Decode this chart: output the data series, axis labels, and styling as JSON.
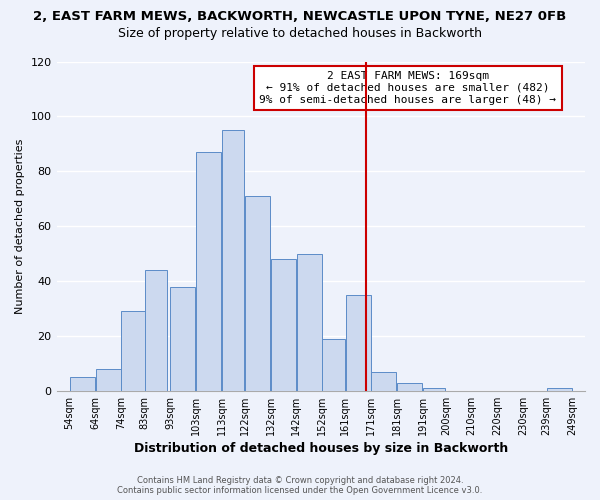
{
  "title1": "2, EAST FARM MEWS, BACKWORTH, NEWCASTLE UPON TYNE, NE27 0FB",
  "title2": "Size of property relative to detached houses in Backworth",
  "xlabel": "Distribution of detached houses by size in Backworth",
  "ylabel": "Number of detached properties",
  "bar_left_edges": [
    54,
    64,
    74,
    83,
    93,
    103,
    113,
    122,
    132,
    142,
    152,
    161,
    171,
    181,
    191,
    200,
    210,
    220,
    230,
    239
  ],
  "bar_widths": [
    10,
    10,
    10,
    9,
    10,
    10,
    9,
    10,
    10,
    10,
    9,
    10,
    10,
    10,
    9,
    10,
    10,
    10,
    9,
    10
  ],
  "bar_heights": [
    5,
    8,
    29,
    44,
    38,
    87,
    95,
    71,
    48,
    50,
    19,
    35,
    7,
    3,
    1,
    0,
    0,
    0,
    0,
    1
  ],
  "tick_labels": [
    "54sqm",
    "64sqm",
    "74sqm",
    "83sqm",
    "93sqm",
    "103sqm",
    "113sqm",
    "122sqm",
    "132sqm",
    "142sqm",
    "152sqm",
    "161sqm",
    "171sqm",
    "181sqm",
    "191sqm",
    "200sqm",
    "210sqm",
    "220sqm",
    "230sqm",
    "239sqm",
    "249sqm"
  ],
  "tick_positions": [
    54,
    64,
    74,
    83,
    93,
    103,
    113,
    122,
    132,
    142,
    152,
    161,
    171,
    181,
    191,
    200,
    210,
    220,
    230,
    239,
    249
  ],
  "bar_color": "#ccd9ef",
  "bar_edge_color": "#5b8cc8",
  "vline_x": 169,
  "vline_color": "#cc0000",
  "annotation_title": "2 EAST FARM MEWS: 169sqm",
  "annotation_line1": "← 91% of detached houses are smaller (482)",
  "annotation_line2": "9% of semi-detached houses are larger (48) →",
  "annotation_box_color": "#ffffff",
  "annotation_box_edge": "#cc0000",
  "ylim": [
    0,
    120
  ],
  "yticks": [
    0,
    20,
    40,
    60,
    80,
    100,
    120
  ],
  "footer1": "Contains HM Land Registry data © Crown copyright and database right 2024.",
  "footer2": "Contains public sector information licensed under the Open Government Licence v3.0.",
  "background_color": "#eef2fb",
  "grid_color": "#ffffff",
  "title1_fontsize": 9.5,
  "title2_fontsize": 9
}
